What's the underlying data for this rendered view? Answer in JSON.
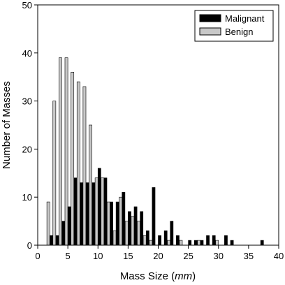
{
  "chart_data": {
    "type": "bar",
    "xlabel_main": "Mass Size (",
    "xlabel_unit": "mm",
    "xlabel_close": ")",
    "ylabel": "Number of Masses",
    "xlim": [
      0,
      40
    ],
    "ylim": [
      0,
      50
    ],
    "xticks": [
      0,
      5,
      10,
      15,
      20,
      25,
      30,
      35,
      40
    ],
    "yticks": [
      0,
      10,
      20,
      30,
      40,
      50
    ],
    "grid": false,
    "legend_position": "top-right",
    "series": [
      {
        "name": "Malignant",
        "color": "#000000",
        "x": [
          2,
          3,
          4,
          5,
          6,
          7,
          8,
          9,
          10,
          11,
          12,
          13,
          14,
          15,
          16,
          17,
          18,
          19,
          20,
          21,
          22,
          23,
          25,
          26,
          27,
          28,
          29,
          31,
          32,
          37
        ],
        "values": [
          2,
          2,
          5,
          8,
          14,
          13,
          13,
          13,
          16,
          14,
          9,
          9,
          11,
          7,
          8,
          7,
          3,
          12,
          2,
          3,
          5,
          2,
          1,
          1,
          1,
          2,
          2,
          2,
          1,
          1
        ]
      },
      {
        "name": "Benign",
        "color": "#c8c8c8",
        "x": [
          2,
          3,
          4,
          5,
          6,
          7,
          8,
          9,
          10,
          11,
          12,
          13,
          14,
          15,
          16,
          17,
          18,
          19,
          22,
          24,
          27,
          30
        ],
        "values": [
          9,
          30,
          39,
          39,
          36,
          34,
          33,
          25,
          14,
          14,
          9,
          3,
          10,
          5,
          6,
          5,
          2,
          1,
          1,
          1,
          1,
          1
        ]
      }
    ]
  }
}
